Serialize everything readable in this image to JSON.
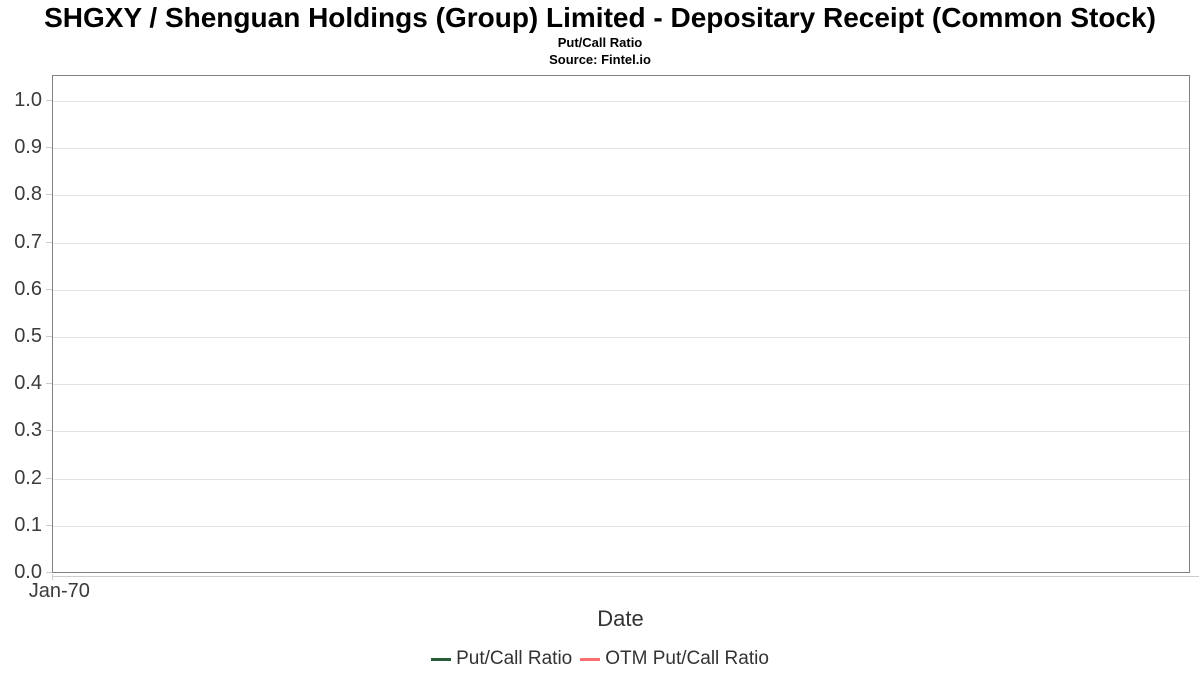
{
  "header": {
    "title": "SHGXY / Shenguan Holdings (Group) Limited - Depositary Receipt (Common Stock)",
    "subtitle": "Put/Call Ratio",
    "source": "Source: Fintel.io"
  },
  "chart_data": {
    "type": "line",
    "title": "SHGXY / Shenguan Holdings (Group) Limited - Depositary Receipt (Common Stock)",
    "subtitle": "Put/Call Ratio",
    "source": "Source: Fintel.io",
    "xlabel": "Date",
    "ylabel": "",
    "x_tick_labels": [
      "Jan-70"
    ],
    "y_ticks": [
      0.0,
      0.1,
      0.2,
      0.3,
      0.4,
      0.5,
      0.6,
      0.7,
      0.8,
      0.9,
      1.0
    ],
    "ylim": [
      0,
      1.05
    ],
    "grid": true,
    "legend_position": "bottom",
    "series": [
      {
        "name": "Put/Call Ratio",
        "color": "#275d35",
        "x": [],
        "values": []
      },
      {
        "name": "OTM Put/Call Ratio",
        "color": "#f96e6e",
        "x": [],
        "values": []
      }
    ]
  },
  "colors": {
    "plot_border": "#808080",
    "gridline": "#e3e3e3",
    "tick": "#cccccc",
    "axis_text": "#3b3b3b",
    "title_text": "#000000",
    "background": "#ffffff"
  }
}
